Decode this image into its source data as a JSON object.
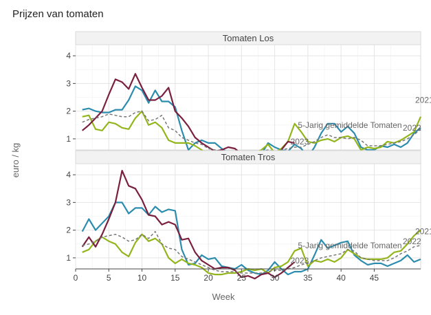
{
  "title": "Prijzen van tomaten",
  "chart_data": {
    "type": "line",
    "xlabel": "Week",
    "ylabel": "euro / kg",
    "xlim": [
      0,
      52
    ],
    "ylim": [
      0.6,
      4.4
    ],
    "xticks": [
      0,
      5,
      10,
      15,
      20,
      25,
      30,
      35,
      40,
      45
    ],
    "yticks": [
      1,
      2,
      3,
      4
    ],
    "grid": true,
    "legend": "none",
    "colors": {
      "2021": "#2b8cad",
      "2022": "#93b51c",
      "2023": "#7a1f3d",
      "avg": "#777777"
    },
    "panels": [
      {
        "name": "Tomaten Los",
        "series": [
          {
            "name": "2021",
            "color": "#2b8cad",
            "style": "solid",
            "x": [
              1,
              2,
              3,
              4,
              5,
              6,
              7,
              8,
              9,
              10,
              11,
              12,
              13,
              14,
              15,
              16,
              17,
              18,
              19,
              20,
              21,
              22,
              23,
              24,
              25,
              26,
              27,
              28,
              29,
              30,
              31,
              32,
              33,
              34,
              35,
              36,
              37,
              38,
              39,
              40,
              41,
              42,
              43,
              44,
              45,
              46,
              47,
              48,
              49,
              50,
              51,
              52
            ],
            "y": [
              2.05,
              2.1,
              2.0,
              1.95,
              1.95,
              2.05,
              2.05,
              2.4,
              2.9,
              2.75,
              2.3,
              2.75,
              2.35,
              2.35,
              2.15,
              1.3,
              0.6,
              0.85,
              0.95,
              0.85,
              0.85,
              0.65,
              0.5,
              0.45,
              0.55,
              0.5,
              0.45,
              0.45,
              0.85,
              0.7,
              0.6,
              0.55,
              0.8,
              0.65,
              0.35,
              0.7,
              1.2,
              1.55,
              1.55,
              1.25,
              1.45,
              1.2,
              0.7,
              0.6,
              0.6,
              0.75,
              0.7,
              0.8,
              0.7,
              0.85,
              1.2,
              1.4
            ]
          },
          {
            "name": "2022",
            "color": "#93b51c",
            "style": "solid",
            "x": [
              1,
              2,
              3,
              4,
              5,
              6,
              7,
              8,
              9,
              10,
              11,
              12,
              13,
              14,
              15,
              16,
              17,
              18,
              19,
              20,
              21,
              22,
              23,
              24,
              25,
              26,
              27,
              28,
              29,
              30,
              31,
              32,
              33,
              34,
              35,
              36,
              37,
              38,
              39,
              40,
              41,
              42,
              43,
              44,
              45,
              46,
              47,
              48,
              49,
              50,
              51,
              52
            ],
            "y": [
              1.8,
              1.85,
              1.35,
              1.3,
              1.6,
              1.55,
              1.4,
              1.35,
              1.75,
              2.0,
              1.5,
              1.6,
              1.4,
              0.95,
              0.85,
              0.85,
              0.85,
              0.75,
              0.6,
              0.4,
              0.4,
              0.5,
              0.45,
              0.45,
              0.45,
              0.55,
              0.5,
              0.6,
              0.8,
              0.5,
              0.65,
              0.9,
              1.55,
              1.25,
              0.9,
              0.85,
              0.95,
              1.0,
              0.9,
              1.05,
              1.1,
              1.0,
              0.6,
              0.7,
              0.65,
              0.7,
              0.9,
              0.85,
              0.95,
              1.1,
              1.25,
              1.8
            ]
          },
          {
            "name": "2023",
            "color": "#7a1f3d",
            "style": "solid",
            "x": [
              1,
              2,
              3,
              4,
              5,
              6,
              7,
              8,
              9,
              10,
              11,
              12,
              13,
              14,
              15,
              16,
              17,
              18,
              19,
              20,
              21,
              22,
              23,
              24,
              25,
              26,
              27,
              28,
              29,
              30,
              31,
              32,
              33
            ],
            "y": [
              1.3,
              1.5,
              1.75,
              2.0,
              2.6,
              3.15,
              3.05,
              2.8,
              3.35,
              2.85,
              2.4,
              2.4,
              2.55,
              2.85,
              2.0,
              1.75,
              1.45,
              1.05,
              0.85,
              0.7,
              0.55,
              0.6,
              0.7,
              0.65,
              0.45,
              0.4,
              0.5,
              0.35,
              0.45,
              0.35,
              0.6,
              0.9,
              0.85
            ]
          },
          {
            "name": "avg",
            "color": "#777777",
            "style": "dashed",
            "x": [
              1,
              2,
              3,
              4,
              5,
              6,
              7,
              8,
              9,
              10,
              11,
              12,
              13,
              14,
              15,
              16,
              17,
              18,
              19,
              20,
              21,
              22,
              23,
              24,
              25,
              26,
              27,
              28,
              29,
              30,
              31,
              32,
              33,
              34,
              35,
              36,
              37,
              38,
              39,
              40,
              41,
              42,
              43,
              44,
              45,
              46,
              47,
              48,
              49,
              50,
              51,
              52
            ],
            "y": [
              1.6,
              1.7,
              1.75,
              1.8,
              1.9,
              1.85,
              1.8,
              1.8,
              1.95,
              2.0,
              1.65,
              1.7,
              1.85,
              1.4,
              1.3,
              1.05,
              0.95,
              0.85,
              0.8,
              0.65,
              0.6,
              0.55,
              0.55,
              0.5,
              0.5,
              0.5,
              0.5,
              0.55,
              0.6,
              0.55,
              0.6,
              0.65,
              0.7,
              0.7,
              0.8,
              0.9,
              1.05,
              1.15,
              1.05,
              1.05,
              1.0,
              1.05,
              0.95,
              0.75,
              0.75,
              0.75,
              0.8,
              0.85,
              0.9,
              1.0,
              1.15,
              1.35
            ]
          }
        ],
        "annotations": [
          "5-Jarig gemiddelde Tomaten",
          "2021",
          "2022",
          "2023"
        ]
      },
      {
        "name": "Tomaten Tros",
        "series": [
          {
            "name": "2021",
            "color": "#2b8cad",
            "style": "solid",
            "x": [
              1,
              2,
              3,
              4,
              5,
              6,
              7,
              8,
              9,
              10,
              11,
              12,
              13,
              14,
              15,
              16,
              17,
              18,
              19,
              20,
              21,
              22,
              23,
              24,
              25,
              26,
              27,
              28,
              29,
              30,
              31,
              32,
              33,
              34,
              35,
              36,
              37,
              38,
              39,
              40,
              41,
              42,
              43,
              44,
              45,
              46,
              47,
              48,
              49,
              50,
              51,
              52
            ],
            "y": [
              1.95,
              2.4,
              2.0,
              2.25,
              2.5,
              3.0,
              3.0,
              2.6,
              2.8,
              2.8,
              2.55,
              2.85,
              2.65,
              2.75,
              2.7,
              1.3,
              0.75,
              0.8,
              1.1,
              0.95,
              1.0,
              0.7,
              0.65,
              0.6,
              0.75,
              0.55,
              0.45,
              0.4,
              0.55,
              0.85,
              0.6,
              0.4,
              0.5,
              0.5,
              0.6,
              1.1,
              1.65,
              1.35,
              1.45,
              1.55,
              1.6,
              1.1,
              0.9,
              0.75,
              0.8,
              0.8,
              0.7,
              0.8,
              0.9,
              1.1,
              0.85,
              0.95
            ]
          },
          {
            "name": "2022",
            "color": "#93b51c",
            "style": "solid",
            "x": [
              1,
              2,
              3,
              4,
              5,
              6,
              7,
              8,
              9,
              10,
              11,
              12,
              13,
              14,
              15,
              16,
              17,
              18,
              19,
              20,
              21,
              22,
              23,
              24,
              25,
              26,
              27,
              28,
              29,
              30,
              31,
              32,
              33,
              34,
              35,
              36,
              37,
              38,
              39,
              40,
              41,
              42,
              43,
              44,
              45,
              46,
              47,
              48,
              49,
              50,
              51,
              52
            ],
            "y": [
              1.2,
              1.3,
              1.6,
              1.75,
              1.6,
              1.5,
              1.2,
              1.05,
              1.55,
              1.85,
              1.6,
              1.7,
              1.5,
              1.0,
              0.8,
              0.95,
              0.8,
              0.75,
              0.65,
              0.45,
              0.4,
              0.4,
              0.45,
              0.45,
              0.5,
              0.6,
              0.55,
              0.6,
              0.45,
              0.65,
              0.7,
              0.85,
              1.25,
              1.35,
              0.7,
              0.9,
              0.85,
              0.95,
              0.85,
              1.0,
              1.3,
              1.15,
              1.0,
              0.95,
              0.95,
              0.95,
              1.0,
              1.2,
              1.25,
              1.5,
              1.8,
              2.0
            ]
          },
          {
            "name": "2023",
            "color": "#7a1f3d",
            "style": "solid",
            "x": [
              1,
              2,
              3,
              4,
              5,
              6,
              7,
              8,
              9,
              10,
              11,
              12,
              13,
              14,
              15,
              16,
              17,
              18,
              19,
              20,
              21,
              22,
              23,
              24,
              25,
              26,
              27,
              28,
              29,
              30,
              31,
              32,
              33
            ],
            "y": [
              1.4,
              1.75,
              1.4,
              1.85,
              2.4,
              3.0,
              4.15,
              3.6,
              3.5,
              3.1,
              2.55,
              2.5,
              2.2,
              2.3,
              2.2,
              1.65,
              1.7,
              1.2,
              0.9,
              0.75,
              0.6,
              0.65,
              0.65,
              0.55,
              0.3,
              0.35,
              0.25,
              0.4,
              0.45,
              0.3,
              0.45,
              0.65,
              0.85
            ]
          },
          {
            "name": "avg",
            "color": "#777777",
            "style": "dashed",
            "x": [
              1,
              2,
              3,
              4,
              5,
              6,
              7,
              8,
              9,
              10,
              11,
              12,
              13,
              14,
              15,
              16,
              17,
              18,
              19,
              20,
              21,
              22,
              23,
              24,
              25,
              26,
              27,
              28,
              29,
              30,
              31,
              32,
              33,
              34,
              35,
              36,
              37,
              38,
              39,
              40,
              41,
              42,
              43,
              44,
              45,
              46,
              47,
              48,
              49,
              50,
              51,
              52
            ],
            "y": [
              1.45,
              1.5,
              1.6,
              1.75,
              1.8,
              1.85,
              1.75,
              1.6,
              1.65,
              1.85,
              1.7,
              1.95,
              1.5,
              1.35,
              1.3,
              1.05,
              0.95,
              0.85,
              0.75,
              0.65,
              0.55,
              0.5,
              0.5,
              0.5,
              0.45,
              0.45,
              0.45,
              0.45,
              0.5,
              0.55,
              0.55,
              0.6,
              0.65,
              0.75,
              0.8,
              0.9,
              1.0,
              1.05,
              1.1,
              1.15,
              1.3,
              1.25,
              1.0,
              0.95,
              0.9,
              0.9,
              0.9,
              1.0,
              1.15,
              1.25,
              1.4,
              1.45
            ]
          }
        ],
        "annotations": [
          "5-Jarig gemiddelde Tomaten",
          "2021",
          "2022",
          "2023"
        ]
      }
    ]
  }
}
